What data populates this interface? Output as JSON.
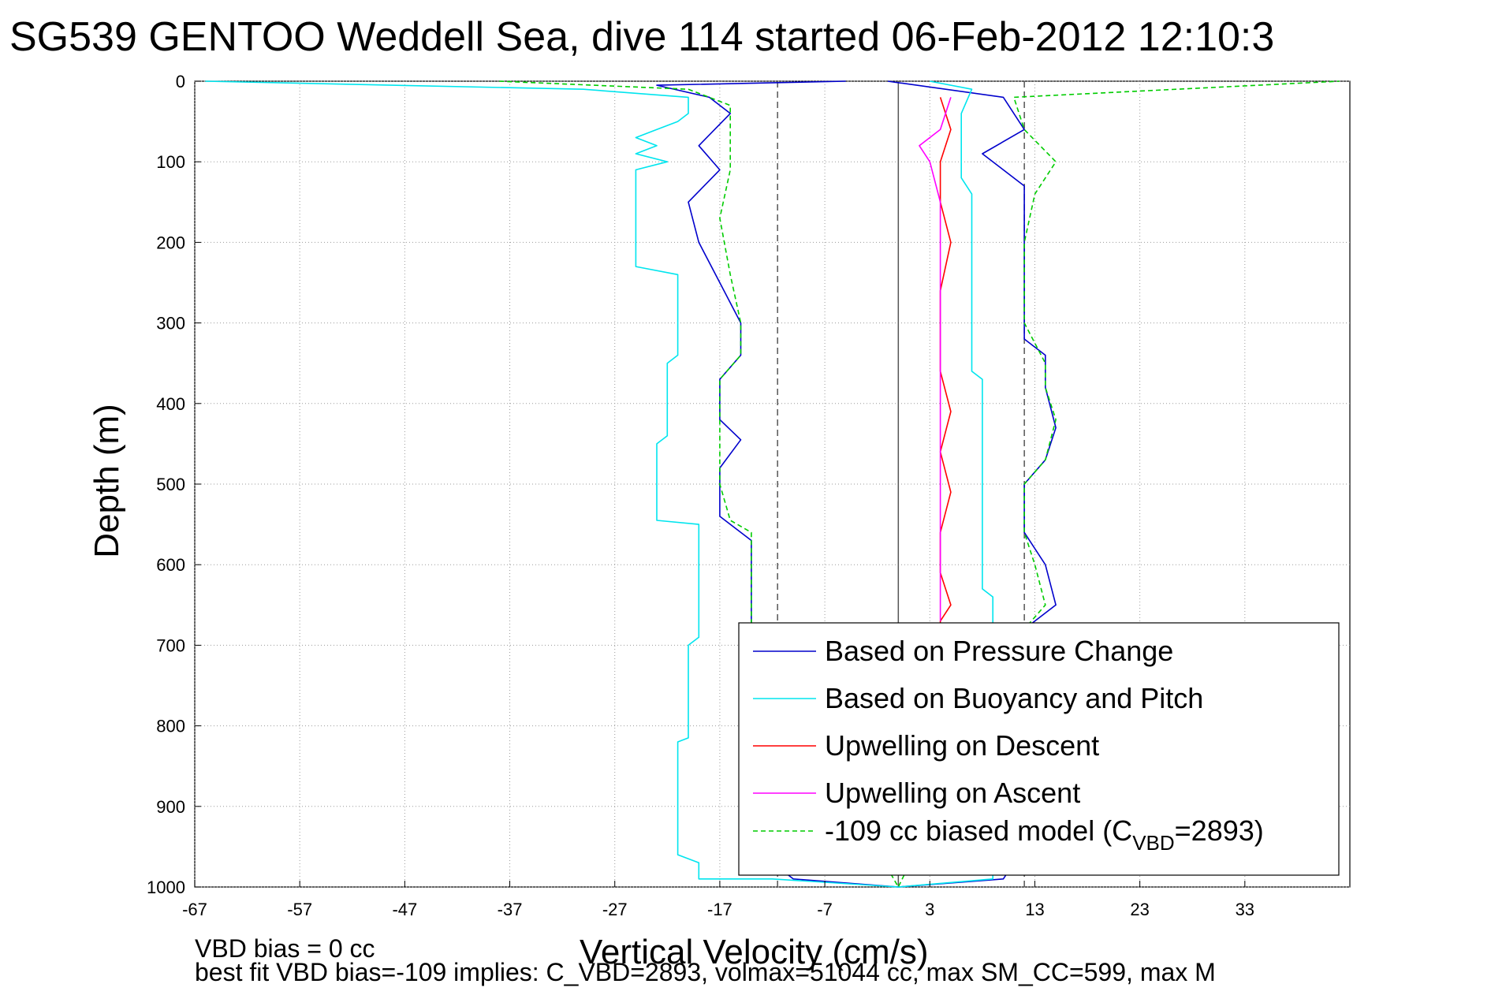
{
  "chart_data": {
    "type": "line",
    "title": "SG539 GENTOO Weddell Sea, dive 114 started 06-Feb-2012 12:10:3",
    "xlabel": "Vertical Velocity (cm/s)",
    "ylabel": "Depth (m)",
    "xlim": [
      -67,
      43
    ],
    "ylim": [
      1000,
      0
    ],
    "y_reversed": true,
    "grid": true,
    "xticks": [
      -67,
      -57,
      -47,
      -37,
      -27,
      -17,
      -7,
      3,
      13,
      23,
      33
    ],
    "yticks": [
      0,
      100,
      200,
      300,
      400,
      500,
      600,
      700,
      800,
      900,
      1000
    ],
    "legend_position": "bottom-right",
    "vertical_lines": [
      {
        "x": -11.5,
        "style": "dashed",
        "color": "#555555"
      },
      {
        "x": 0,
        "style": "solid",
        "color": "#555555"
      },
      {
        "x": 12,
        "style": "dashed",
        "color": "#555555"
      }
    ],
    "series": [
      {
        "name": "Based on Pressure Change",
        "color": "#0000cc",
        "style": "solid",
        "points": [
          [
            -5,
            0
          ],
          [
            -23,
            5
          ],
          [
            -18,
            20
          ],
          [
            -16,
            40
          ],
          [
            -19,
            80
          ],
          [
            -17,
            110
          ],
          [
            -20,
            150
          ],
          [
            -19,
            200
          ],
          [
            -17,
            250
          ],
          [
            -15,
            300
          ],
          [
            -15,
            340
          ],
          [
            -17,
            370
          ],
          [
            -17,
            420
          ],
          [
            -15,
            445
          ],
          [
            -17,
            480
          ],
          [
            -17,
            540
          ],
          [
            -14,
            570
          ],
          [
            -14,
            620
          ],
          [
            -14,
            670
          ],
          [
            -14,
            700
          ],
          [
            -14,
            950
          ],
          [
            -10,
            990
          ],
          [
            0,
            1000
          ],
          [
            10,
            990
          ],
          [
            12,
            950
          ],
          [
            12,
            700
          ],
          [
            12,
            680
          ],
          [
            15,
            650
          ],
          [
            14,
            600
          ],
          [
            12,
            560
          ],
          [
            12,
            500
          ],
          [
            14,
            470
          ],
          [
            15,
            430
          ],
          [
            14,
            380
          ],
          [
            14,
            340
          ],
          [
            12,
            320
          ],
          [
            12,
            250
          ],
          [
            12,
            200
          ],
          [
            12,
            130
          ],
          [
            8,
            90
          ],
          [
            12,
            60
          ],
          [
            10,
            20
          ],
          [
            -1,
            0
          ]
        ]
      },
      {
        "name": "Based on Buoyancy and Pitch",
        "color": "#00e5ee",
        "style": "solid",
        "points": [
          [
            -66,
            0
          ],
          [
            -30,
            10
          ],
          [
            -20,
            20
          ],
          [
            -20,
            40
          ],
          [
            -21,
            50
          ],
          [
            -23,
            60
          ],
          [
            -25,
            70
          ],
          [
            -23,
            80
          ],
          [
            -25,
            90
          ],
          [
            -22,
            100
          ],
          [
            -25,
            110
          ],
          [
            -25,
            150
          ],
          [
            -25,
            230
          ],
          [
            -21,
            240
          ],
          [
            -21,
            300
          ],
          [
            -21,
            340
          ],
          [
            -22,
            350
          ],
          [
            -22,
            440
          ],
          [
            -23,
            450
          ],
          [
            -23,
            545
          ],
          [
            -19,
            550
          ],
          [
            -19,
            690
          ],
          [
            -20,
            700
          ],
          [
            -20,
            815
          ],
          [
            -21,
            820
          ],
          [
            -21,
            960
          ],
          [
            -19,
            970
          ],
          [
            -19,
            990
          ],
          [
            -12,
            990
          ],
          [
            0,
            1000
          ],
          [
            9,
            990
          ],
          [
            9,
            640
          ],
          [
            8,
            630
          ],
          [
            8,
            370
          ],
          [
            7,
            360
          ],
          [
            7,
            140
          ],
          [
            6,
            120
          ],
          [
            6,
            40
          ],
          [
            7,
            10
          ],
          [
            3,
            0
          ]
        ]
      },
      {
        "name": "Upwelling on Descent",
        "color": "#ff0000",
        "style": "solid",
        "points": [
          [
            4,
            20
          ],
          [
            5,
            60
          ],
          [
            4,
            100
          ],
          [
            4,
            150
          ],
          [
            5,
            200
          ],
          [
            4,
            260
          ],
          [
            4,
            310
          ],
          [
            4,
            360
          ],
          [
            5,
            410
          ],
          [
            4,
            460
          ],
          [
            5,
            510
          ],
          [
            4,
            560
          ],
          [
            4,
            610
          ],
          [
            5,
            650
          ],
          [
            4,
            670
          ],
          [
            4,
            680
          ]
        ]
      },
      {
        "name": "Upwelling on Ascent",
        "color": "#ff00ff",
        "style": "solid",
        "points": [
          [
            5,
            20
          ],
          [
            4,
            60
          ],
          [
            2,
            80
          ],
          [
            3,
            100
          ],
          [
            4,
            150
          ],
          [
            4,
            200
          ],
          [
            4,
            250
          ],
          [
            4,
            300
          ],
          [
            4,
            350
          ],
          [
            4,
            400
          ],
          [
            4,
            450
          ],
          [
            4,
            500
          ],
          [
            4,
            550
          ],
          [
            4,
            600
          ],
          [
            4,
            640
          ],
          [
            4,
            670
          ]
        ]
      },
      {
        "name": "-109 cc biased model (C_VBD=2893)",
        "color": "#00cc00",
        "style": "dashed",
        "points": [
          [
            -38,
            0
          ],
          [
            -20,
            10
          ],
          [
            -16,
            30
          ],
          [
            -16,
            110
          ],
          [
            -17,
            170
          ],
          [
            -16,
            240
          ],
          [
            -15,
            300
          ],
          [
            -15,
            340
          ],
          [
            -17,
            370
          ],
          [
            -17,
            440
          ],
          [
            -17,
            500
          ],
          [
            -16,
            545
          ],
          [
            -14,
            560
          ],
          [
            -14,
            620
          ],
          [
            -14,
            680
          ],
          [
            0,
            1000
          ],
          [
            12,
            680
          ],
          [
            14,
            650
          ],
          [
            13,
            600
          ],
          [
            12,
            560
          ],
          [
            12,
            500
          ],
          [
            14,
            470
          ],
          [
            15,
            420
          ],
          [
            14,
            380
          ],
          [
            14,
            350
          ],
          [
            12,
            300
          ],
          [
            12,
            200
          ],
          [
            13,
            140
          ],
          [
            15,
            100
          ],
          [
            12,
            60
          ],
          [
            11,
            20
          ],
          [
            42,
            0
          ]
        ]
      }
    ],
    "legend_entries": [
      {
        "label": "Based on Pressure Change"
      },
      {
        "label": "Based on Buoyancy and Pitch"
      },
      {
        "label": "Upwelling on Descent"
      },
      {
        "label": "Upwelling on Ascent"
      },
      {
        "label_main": "-109 cc biased model (C",
        "label_sub": "VBD",
        "label_tail": "=2893)"
      }
    ],
    "annotations": {
      "line1": "VBD bias = 0 cc",
      "line2": "best fit VBD bias=-109 implies: C_VBD=2893, volmax=51044 cc, max SM_CC=599, max M"
    }
  }
}
